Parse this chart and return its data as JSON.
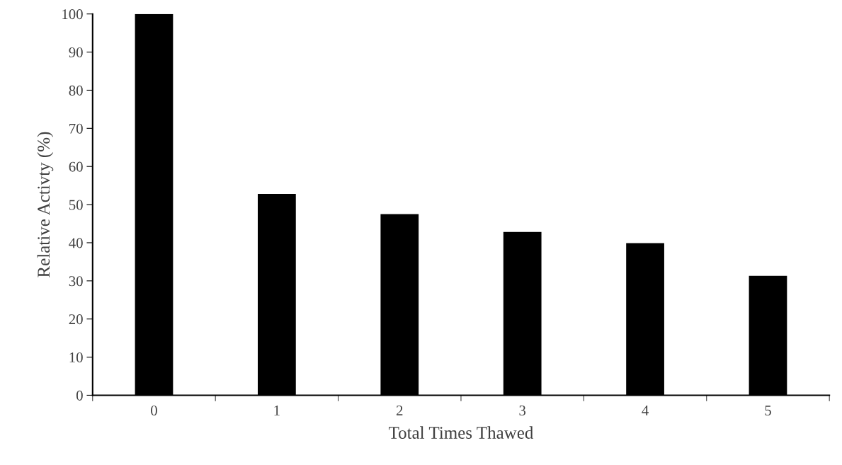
{
  "chart_data": {
    "type": "bar",
    "xlabel": "Total Times Thawed",
    "ylabel": "Relative Activty (%)",
    "categories": [
      "0",
      "1",
      "2",
      "3",
      "4",
      "5"
    ],
    "values": [
      100,
      52.8,
      47.5,
      42.8,
      39.9,
      31.3
    ],
    "color": "#000000",
    "ylim": [
      0,
      100
    ],
    "yticks": [
      0,
      10,
      20,
      30,
      40,
      50,
      60,
      70,
      80,
      90,
      100
    ],
    "grid": false,
    "legend": false
  }
}
